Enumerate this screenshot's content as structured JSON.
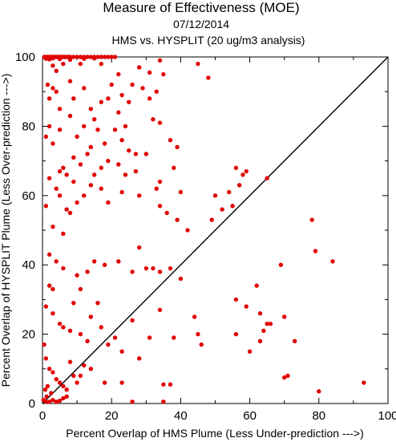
{
  "chart_data": {
    "type": "scatter",
    "title": "Measure of Effectiveness (MOE)",
    "subtitle": "07/12/2014",
    "subtitle2": "HMS vs. HYSPLIT  (20 ug/m3 analysis)",
    "xlabel": "Percent Overlap of HMS Plume (Less Under-prediction --->)",
    "ylabel": "Percent Overlap of HYSPLIT Plume (Less Over-prediction --->)",
    "xlim": [
      0,
      100
    ],
    "ylim": [
      0,
      100
    ],
    "xticks": [
      "0",
      "20",
      "40",
      "60",
      "80",
      "100"
    ],
    "yticks": [
      "0",
      "20",
      "40",
      "60",
      "80",
      "100"
    ],
    "reference_line": "y = x",
    "point_color": "#e00000",
    "points": [
      [
        0.5,
        100
      ],
      [
        1,
        100
      ],
      [
        1.5,
        100
      ],
      [
        2,
        100
      ],
      [
        2.5,
        100
      ],
      [
        3,
        100
      ],
      [
        3.5,
        100
      ],
      [
        4,
        100
      ],
      [
        4.5,
        100
      ],
      [
        5,
        100
      ],
      [
        5.5,
        100
      ],
      [
        6,
        100
      ],
      [
        6.5,
        100
      ],
      [
        7,
        100
      ],
      [
        7.5,
        100
      ],
      [
        8,
        100
      ],
      [
        9,
        100
      ],
      [
        10,
        100
      ],
      [
        11,
        100
      ],
      [
        12,
        100
      ],
      [
        13,
        100
      ],
      [
        14,
        100
      ],
      [
        15,
        100
      ],
      [
        16,
        100
      ],
      [
        17,
        100
      ],
      [
        18,
        100
      ],
      [
        19,
        100
      ],
      [
        20,
        100
      ],
      [
        21,
        100
      ],
      [
        1,
        99.5
      ],
      [
        2,
        99.3
      ],
      [
        3,
        99.6
      ],
      [
        5,
        99.4
      ],
      [
        8,
        99.2
      ],
      [
        12,
        99.5
      ],
      [
        15,
        99.6
      ],
      [
        3,
        97.5
      ],
      [
        6,
        98
      ],
      [
        4,
        96
      ],
      [
        1.5,
        92
      ],
      [
        3,
        91
      ],
      [
        11,
        98
      ],
      [
        17,
        98
      ],
      [
        22,
        95
      ],
      [
        26,
        92
      ],
      [
        28,
        97
      ],
      [
        31,
        95.5
      ],
      [
        34,
        99
      ],
      [
        35,
        95
      ],
      [
        45,
        98
      ],
      [
        48,
        94
      ],
      [
        2,
        88
      ],
      [
        4,
        90
      ],
      [
        5,
        85
      ],
      [
        8,
        93
      ],
      [
        9,
        88
      ],
      [
        12,
        91
      ],
      [
        14,
        85
      ],
      [
        17,
        87
      ],
      [
        15,
        82
      ],
      [
        19,
        88
      ],
      [
        23,
        89
      ],
      [
        25,
        87
      ],
      [
        29,
        91
      ],
      [
        31,
        88
      ],
      [
        33,
        90
      ],
      [
        20,
        92
      ],
      [
        2,
        80
      ],
      [
        5,
        79
      ],
      [
        8,
        83
      ],
      [
        10,
        77
      ],
      [
        12,
        80
      ],
      [
        14,
        74
      ],
      [
        16,
        79
      ],
      [
        18,
        75
      ],
      [
        21,
        79
      ],
      [
        23,
        76
      ],
      [
        25,
        73
      ],
      [
        27,
        72
      ],
      [
        32,
        82
      ],
      [
        34,
        81
      ],
      [
        37,
        76
      ],
      [
        39,
        74
      ],
      [
        22,
        84
      ],
      [
        24,
        80
      ],
      [
        1,
        77
      ],
      [
        3,
        75
      ],
      [
        6,
        68
      ],
      [
        9,
        71
      ],
      [
        11,
        69
      ],
      [
        13,
        72
      ],
      [
        15,
        66
      ],
      [
        17,
        68
      ],
      [
        19,
        70
      ],
      [
        22,
        69
      ],
      [
        24,
        66
      ],
      [
        27,
        67
      ],
      [
        30,
        72
      ],
      [
        34,
        64
      ],
      [
        38,
        68
      ],
      [
        2,
        65
      ],
      [
        4,
        62
      ],
      [
        5,
        67
      ],
      [
        7,
        66
      ],
      [
        9,
        64
      ],
      [
        12,
        60
      ],
      [
        14,
        63
      ],
      [
        17,
        62
      ],
      [
        19,
        58
      ],
      [
        23,
        61
      ],
      [
        28,
        60
      ],
      [
        33,
        62
      ],
      [
        40,
        61
      ],
      [
        42,
        50
      ],
      [
        50,
        60
      ],
      [
        52,
        56
      ],
      [
        54,
        61
      ],
      [
        55,
        57
      ],
      [
        56,
        68
      ],
      [
        58,
        66
      ],
      [
        59,
        67
      ],
      [
        65,
        65
      ],
      [
        34,
        57
      ],
      [
        36,
        55
      ],
      [
        39,
        53
      ],
      [
        49,
        53
      ],
      [
        57,
        63
      ],
      [
        5,
        60
      ],
      [
        7,
        56
      ],
      [
        8,
        55
      ],
      [
        3,
        51
      ],
      [
        6,
        49
      ],
      [
        1,
        57
      ],
      [
        10,
        58
      ],
      [
        2,
        43
      ],
      [
        4,
        41
      ],
      [
        2,
        34
      ],
      [
        3,
        33
      ],
      [
        6,
        39
      ],
      [
        10,
        37
      ],
      [
        11,
        33
      ],
      [
        13,
        38
      ],
      [
        15,
        41
      ],
      [
        18,
        40
      ],
      [
        22,
        41
      ],
      [
        26,
        38
      ],
      [
        28,
        45
      ],
      [
        30,
        39
      ],
      [
        32,
        39
      ],
      [
        34,
        38
      ],
      [
        37,
        39
      ],
      [
        40,
        36
      ],
      [
        62,
        34
      ],
      [
        69,
        40
      ],
      [
        79,
        44
      ],
      [
        84,
        41
      ],
      [
        56,
        30
      ],
      [
        59,
        28
      ],
      [
        63,
        26
      ],
      [
        65,
        23
      ],
      [
        66,
        23
      ],
      [
        70,
        25
      ],
      [
        73,
        18
      ],
      [
        78,
        53
      ],
      [
        1,
        28
      ],
      [
        3,
        26
      ],
      [
        5,
        23
      ],
      [
        6,
        22
      ],
      [
        8,
        21
      ],
      [
        9,
        29
      ],
      [
        11,
        20
      ],
      [
        13,
        18
      ],
      [
        14,
        25
      ],
      [
        16,
        29
      ],
      [
        17,
        22
      ],
      [
        19,
        17
      ],
      [
        21,
        19
      ],
      [
        23,
        15
      ],
      [
        26,
        24
      ],
      [
        28,
        13
      ],
      [
        31,
        19
      ],
      [
        34,
        27
      ],
      [
        38,
        19
      ],
      [
        44,
        25
      ],
      [
        45,
        20
      ],
      [
        46,
        17
      ],
      [
        56,
        20
      ],
      [
        60,
        15
      ],
      [
        63,
        18
      ],
      [
        64,
        21
      ],
      [
        0.5,
        17
      ],
      [
        1,
        13
      ],
      [
        2,
        10
      ],
      [
        3,
        9
      ],
      [
        4,
        7
      ],
      [
        5,
        6
      ],
      [
        6,
        5
      ],
      [
        7,
        4
      ],
      [
        8,
        12
      ],
      [
        9,
        8
      ],
      [
        10,
        6
      ],
      [
        11,
        8
      ],
      [
        12,
        11
      ],
      [
        14,
        10
      ],
      [
        0.8,
        4
      ],
      [
        1.2,
        2
      ],
      [
        1.5,
        5
      ],
      [
        2.5,
        3
      ],
      [
        0.3,
        1
      ],
      [
        1,
        0.5
      ],
      [
        2,
        0.5
      ],
      [
        3,
        1
      ],
      [
        4,
        0.5
      ],
      [
        5,
        0.8
      ],
      [
        6,
        1.5
      ],
      [
        7,
        2
      ],
      [
        18,
        6
      ],
      [
        23,
        6
      ],
      [
        26,
        0.5
      ],
      [
        35,
        0.5
      ],
      [
        35,
        5.5
      ],
      [
        37,
        5.5
      ],
      [
        70,
        7.5
      ],
      [
        71,
        8
      ],
      [
        80,
        3.5
      ],
      [
        93,
        6
      ]
    ]
  }
}
